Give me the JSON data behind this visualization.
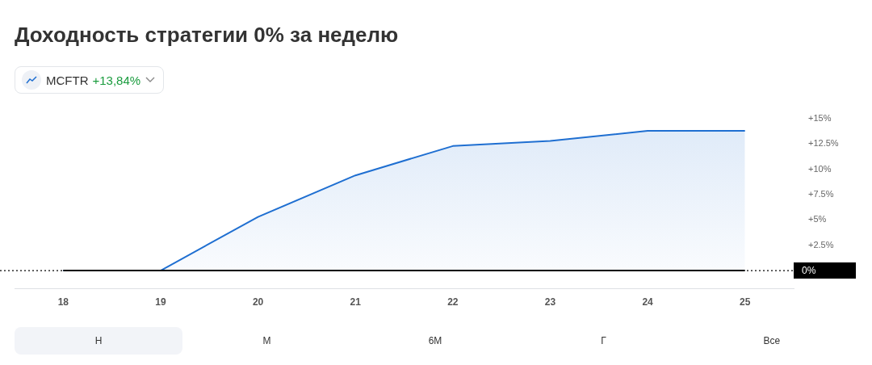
{
  "chart_data": {
    "type": "line",
    "title": "Доходность стратегии 0% за неделю",
    "x": [
      18,
      19,
      20,
      21,
      22,
      23,
      24,
      25
    ],
    "xlim": [
      17.5,
      25.5
    ],
    "xticks": [
      18,
      19,
      20,
      21,
      22,
      23,
      24,
      25
    ],
    "ylim": [
      -1.8,
      15
    ],
    "yticks": [
      {
        "value": 2.5,
        "label": "+2.5%"
      },
      {
        "value": 5,
        "label": "+5%"
      },
      {
        "value": 7.5,
        "label": "+7.5%"
      },
      {
        "value": 10,
        "label": "+10%"
      },
      {
        "value": 12.5,
        "label": "+12.5%"
      },
      {
        "value": 15,
        "label": "+15%"
      }
    ],
    "series": [
      {
        "name": "MCFTR",
        "type": "area",
        "color": "#1f6fd1",
        "values": [
          0,
          0,
          5.3,
          9.4,
          12.3,
          12.8,
          13.8,
          13.8
        ]
      },
      {
        "color": "#000000",
        "values": [
          0,
          0,
          0,
          0,
          0,
          0,
          0,
          0
        ]
      }
    ],
    "ref_lines": [
      {
        "axis": "y",
        "value": 0,
        "label": "0%",
        "color": "#000000",
        "line_style": "dotted"
      }
    ],
    "annotations": [
      "+13,84%",
      "Н",
      "М",
      "6М",
      "Г",
      "Все"
    ],
    "grid": false,
    "legend": "top left",
    "marker": "none"
  }
}
